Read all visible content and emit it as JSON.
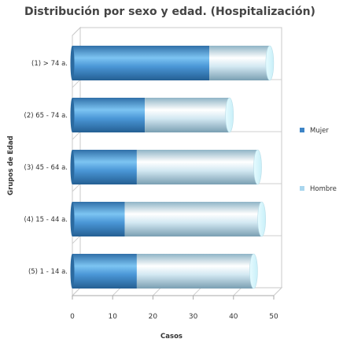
{
  "chart_data": {
    "type": "bar",
    "orientation": "horizontal",
    "stacked": true,
    "three_d": true,
    "title": "Distribución por sexo y edad. (Hospitalización)",
    "xlabel": "Casos",
    "ylabel": "Grupos de Edad",
    "categories": [
      "(1) > 74 a.",
      "(2) 65 - 74 a.",
      "(3) 45 - 64 a.",
      "(4) 15 - 44 a.",
      "(5) 1 - 14 a."
    ],
    "series": [
      {
        "name": "Mujer",
        "values": [
          34,
          18,
          16,
          13,
          16
        ],
        "color": "#3d84c6"
      },
      {
        "name": "Hombre",
        "values": [
          15,
          21,
          30,
          34,
          29
        ],
        "color": "#aad6ee"
      }
    ],
    "xlim": [
      0,
      50
    ],
    "xticks": [
      0,
      10,
      20,
      30,
      40,
      50
    ],
    "grid": true,
    "legend_position": "right"
  }
}
